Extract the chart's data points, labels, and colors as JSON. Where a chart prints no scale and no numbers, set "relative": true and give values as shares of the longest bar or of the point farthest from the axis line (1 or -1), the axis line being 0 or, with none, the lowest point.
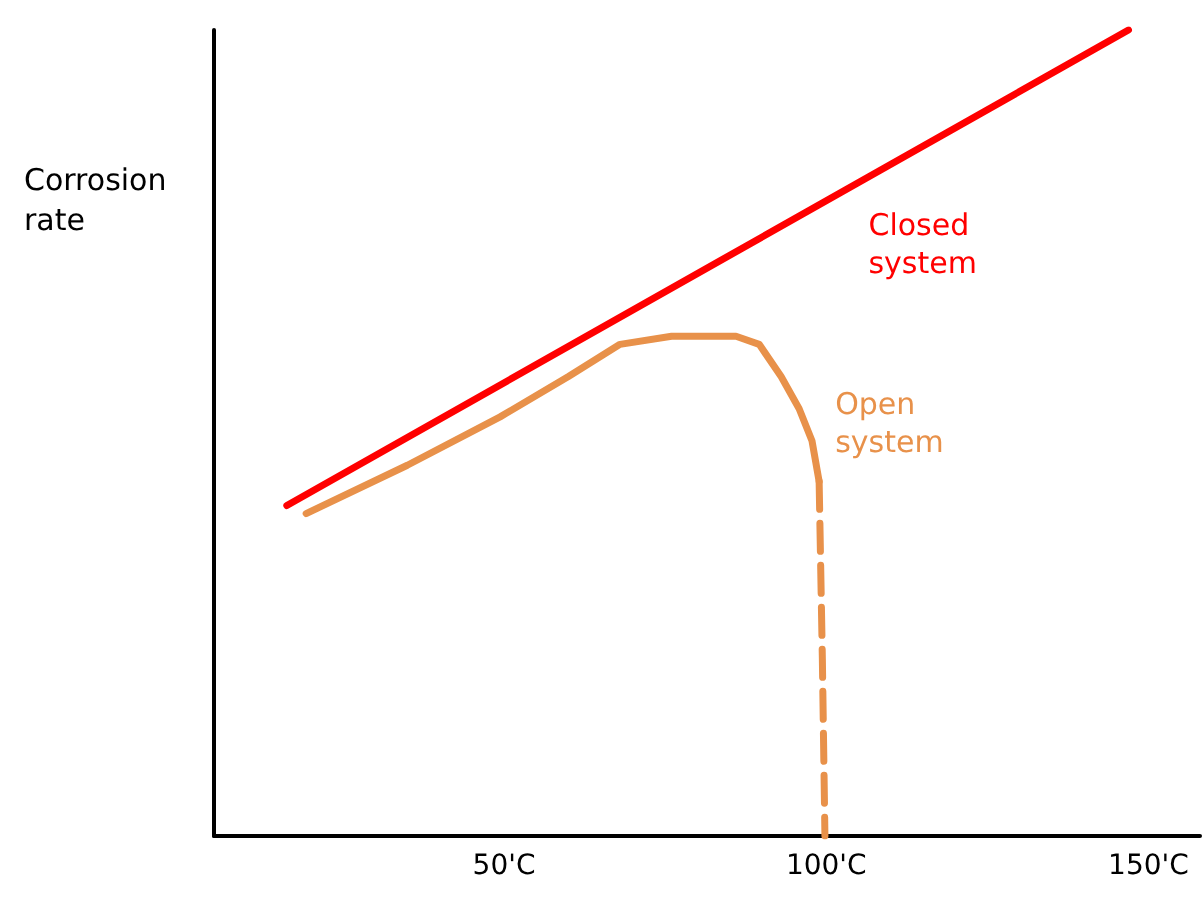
{
  "chart_data": {
    "type": "line",
    "relative": true,
    "ylabel": "Corrosion rate",
    "xlim": [
      5,
      158
    ],
    "xticks": [
      {
        "value": 50,
        "label": "50'C"
      },
      {
        "value": 100,
        "label": "100'C"
      },
      {
        "value": 150,
        "label": "150'C"
      }
    ],
    "series": [
      {
        "name": "Closed system",
        "color": "#ff0000",
        "line_style": "solid",
        "x": [
          16.3,
          146.9
        ],
        "values": [
          0.41,
          1
        ]
      },
      {
        "name": "Open system",
        "color": "#e8914a",
        "line_style": "solid",
        "x": [
          19.3,
          35,
          49.4,
          60,
          68,
          76,
          81.9,
          86,
          89.6,
          93,
          95.8,
          97.8,
          98.9
        ],
        "values": [
          0.4,
          0.46,
          0.52,
          0.57,
          0.61,
          0.62,
          0.62,
          0.62,
          0.61,
          0.57,
          0.53,
          0.49,
          0.44
        ]
      },
      {
        "color": "#e8914a",
        "line_style": "dashed",
        "x": [
          98.9,
          99.4,
          99.8
        ],
        "values": [
          0.44,
          0.22,
          0
        ]
      }
    ],
    "marker": "none",
    "grid": false,
    "legend": false
  }
}
